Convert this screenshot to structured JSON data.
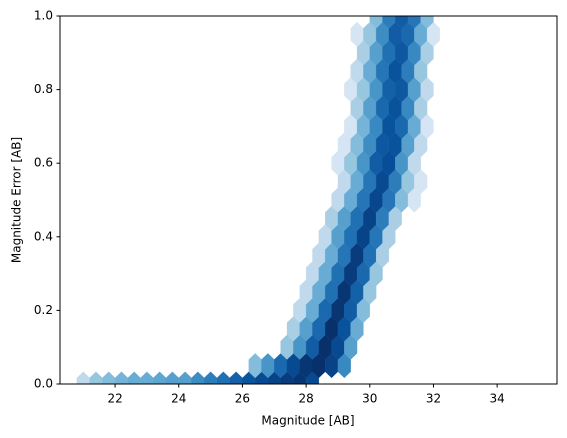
{
  "chart_data": {
    "type": "hexbin",
    "x_label": "Magnitude [AB]",
    "y_label": "Magnitude Error [AB]",
    "xlim": [
      20.27,
      35.88
    ],
    "ylim": [
      0,
      1
    ],
    "xticks": [
      22,
      24,
      26,
      28,
      30,
      32,
      34
    ],
    "yticks": [
      {
        "value": 0,
        "label": "0.0"
      },
      0.2,
      0.4,
      0.6,
      0.8,
      {
        "value": 1,
        "label": "1.0"
      }
    ],
    "colors": [
      "#f7fbff",
      "#deebf7",
      "#c6dbef",
      "#9ecae1",
      "#6baed6",
      "#4292c6",
      "#2171b5",
      "#08519c",
      "#08306b"
    ],
    "x": [
      21.0,
      21.4,
      21.8,
      22.2,
      22.6,
      23.0,
      23.4,
      23.8,
      24.2,
      24.6,
      25.0,
      25.4,
      25.8,
      26.2,
      26.6,
      27.0,
      27.4,
      27.8,
      28.2,
      26.4,
      26.8,
      27.2,
      27.6,
      28.0,
      28.4,
      28.8,
      29.2,
      27.4,
      27.8,
      28.2,
      28.6,
      29.0,
      29.4,
      27.6,
      28.0,
      28.4,
      28.8,
      29.2,
      29.6,
      27.8,
      28.2,
      28.6,
      29.0,
      29.4,
      29.8,
      28.0,
      28.4,
      28.8,
      29.2,
      29.6,
      30.0,
      28.2,
      28.6,
      29.0,
      29.4,
      29.8,
      30.2,
      28.4,
      28.8,
      29.2,
      29.6,
      30.0,
      30.4,
      28.6,
      29.0,
      29.4,
      29.8,
      30.2,
      30.6,
      28.8,
      29.2,
      29.6,
      30.0,
      30.4,
      30.8,
      29.0,
      29.4,
      29.8,
      30.2,
      30.6,
      31.0,
      31.4,
      29.2,
      29.6,
      30.0,
      30.4,
      30.8,
      31.2,
      31.6,
      29.0,
      29.4,
      29.8,
      30.2,
      30.6,
      31.0,
      31.4,
      29.2,
      29.6,
      30.0,
      30.4,
      30.8,
      31.2,
      31.6,
      29.4,
      29.8,
      30.2,
      30.6,
      31.0,
      31.4,
      31.8,
      29.6,
      30.0,
      30.4,
      30.8,
      31.2,
      31.6,
      29.4,
      29.8,
      30.2,
      30.6,
      31.0,
      31.4,
      31.8,
      29.6,
      30.0,
      30.4,
      30.8,
      31.2,
      31.6,
      29.8,
      30.2,
      30.6,
      31.0,
      31.4,
      31.8,
      29.6,
      30.0,
      30.4,
      30.8,
      31.2,
      31.6,
      32.0,
      30.2,
      30.6,
      31.0,
      31.4,
      31.8
    ],
    "y": [
      0,
      0,
      0,
      0,
      0,
      0,
      0,
      0,
      0,
      0,
      0,
      0,
      0,
      0,
      0,
      0,
      0,
      0,
      0,
      0.05,
      0.05,
      0.05,
      0.05,
      0.05,
      0.05,
      0.05,
      0.05,
      0.1,
      0.1,
      0.1,
      0.1,
      0.1,
      0.1,
      0.15,
      0.15,
      0.15,
      0.15,
      0.15,
      0.15,
      0.2,
      0.2,
      0.2,
      0.2,
      0.2,
      0.2,
      0.25,
      0.25,
      0.25,
      0.25,
      0.25,
      0.25,
      0.3,
      0.3,
      0.3,
      0.3,
      0.3,
      0.3,
      0.35,
      0.35,
      0.35,
      0.35,
      0.35,
      0.35,
      0.4,
      0.4,
      0.4,
      0.4,
      0.4,
      0.4,
      0.45,
      0.45,
      0.45,
      0.45,
      0.45,
      0.45,
      0.5,
      0.5,
      0.5,
      0.5,
      0.5,
      0.5,
      0.5,
      0.55,
      0.55,
      0.55,
      0.55,
      0.55,
      0.55,
      0.55,
      0.6,
      0.6,
      0.6,
      0.6,
      0.6,
      0.6,
      0.6,
      0.65,
      0.65,
      0.65,
      0.65,
      0.65,
      0.65,
      0.65,
      0.7,
      0.7,
      0.7,
      0.7,
      0.7,
      0.7,
      0.7,
      0.75,
      0.75,
      0.75,
      0.75,
      0.75,
      0.75,
      0.8,
      0.8,
      0.8,
      0.8,
      0.8,
      0.8,
      0.8,
      0.85,
      0.85,
      0.85,
      0.85,
      0.85,
      0.85,
      0.9,
      0.9,
      0.9,
      0.9,
      0.9,
      0.9,
      0.95,
      0.95,
      0.95,
      0.95,
      0.95,
      0.95,
      0.95,
      1.0,
      1.0,
      1.0,
      1.0,
      1.0
    ],
    "values": [
      3,
      5,
      6,
      7,
      8,
      8,
      9,
      10,
      10,
      14,
      18,
      22,
      28,
      34,
      40,
      45,
      50,
      55,
      40,
      6,
      12,
      25,
      40,
      55,
      60,
      45,
      15,
      5,
      12,
      30,
      60,
      40,
      10,
      4,
      10,
      25,
      60,
      35,
      8,
      3,
      8,
      25,
      55,
      30,
      6,
      3,
      8,
      22,
      55,
      28,
      5,
      3,
      8,
      22,
      50,
      25,
      5,
      3,
      8,
      20,
      50,
      22,
      4,
      3,
      10,
      22,
      45,
      20,
      4,
      4,
      10,
      22,
      45,
      18,
      4,
      3,
      8,
      20,
      42,
      20,
      6,
      2,
      3,
      8,
      20,
      40,
      18,
      5,
      2,
      2,
      5,
      12,
      30,
      38,
      12,
      3,
      2,
      6,
      14,
      32,
      35,
      10,
      3,
      2,
      7,
      15,
      35,
      25,
      8,
      2,
      4,
      10,
      25,
      35,
      15,
      4,
      2,
      5,
      12,
      28,
      32,
      10,
      3,
      3,
      8,
      20,
      35,
      18,
      5,
      4,
      10,
      22,
      32,
      15,
      4,
      2,
      5,
      14,
      30,
      25,
      8,
      2,
      6,
      18,
      30,
      20,
      6
    ]
  }
}
